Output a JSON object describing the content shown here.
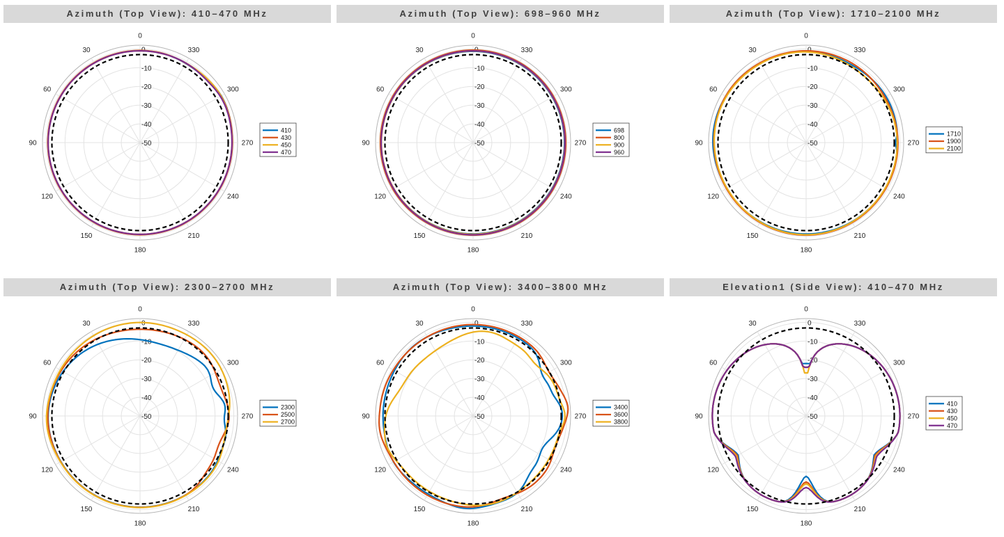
{
  "chart_data": [
    {
      "type": "polar",
      "title": "Azimuth (Top View): 410–470 MHz",
      "angle_ticks": [
        "0",
        "30",
        "60",
        "90",
        "120",
        "150",
        "180",
        "210",
        "240",
        "270",
        "300",
        "330"
      ],
      "r_ticks": [
        "0",
        "-10",
        "-20",
        "-30",
        "-40",
        "-50"
      ],
      "rlim": [
        -50,
        2
      ],
      "angle_direction": "counterclockwise",
      "zero_location": "top",
      "reference": {
        "style": "black dashed circle",
        "value": -3
      },
      "legend_position": "right",
      "series": [
        {
          "name": "410",
          "color": "#0072bd",
          "base": -0.9,
          "features": [
            [
              300,
              1.0,
              12
            ],
            [
              320,
              -0.5,
              12
            ]
          ]
        },
        {
          "name": "430",
          "color": "#d95319",
          "base": -0.8,
          "features": [
            [
              300,
              0.8,
              12
            ],
            [
              320,
              -0.5,
              12
            ]
          ]
        },
        {
          "name": "450",
          "color": "#edb120",
          "base": -1.0,
          "features": [
            [
              300,
              0.8,
              12
            ]
          ]
        },
        {
          "name": "470",
          "color": "#7e2f8e",
          "base": -1.0,
          "features": [
            [
              300,
              0.6,
              12
            ],
            [
              312,
              -0.6,
              8
            ]
          ]
        }
      ]
    },
    {
      "type": "polar",
      "title": "Azimuth (Top View): 698–960 MHz",
      "angle_ticks": [
        "0",
        "30",
        "60",
        "90",
        "120",
        "150",
        "180",
        "210",
        "240",
        "270",
        "300",
        "330"
      ],
      "r_ticks": [
        "0",
        "-10",
        "-20",
        "-30",
        "-40",
        "-50"
      ],
      "rlim": [
        -50,
        2
      ],
      "angle_direction": "counterclockwise",
      "zero_location": "top",
      "reference": {
        "style": "black dashed circle",
        "value": -3
      },
      "legend_position": "right",
      "series": [
        {
          "name": "698",
          "color": "#0072bd",
          "base": -1.3,
          "features": [
            [
              90,
              0.3,
              40
            ]
          ]
        },
        {
          "name": "800",
          "color": "#d95319",
          "base": -0.6,
          "features": []
        },
        {
          "name": "900",
          "color": "#edb120",
          "base": -1.1,
          "features": []
        },
        {
          "name": "960",
          "color": "#7e2f8e",
          "base": -1.0,
          "features": [
            [
              180,
              0.2,
              30
            ]
          ]
        }
      ]
    },
    {
      "type": "polar",
      "title": "Azimuth (Top View): 1710–2100 MHz",
      "angle_ticks": [
        "0",
        "30",
        "60",
        "90",
        "120",
        "150",
        "180",
        "210",
        "240",
        "270",
        "300",
        "330"
      ],
      "r_ticks": [
        "0",
        "-10",
        "-20",
        "-30",
        "-40",
        "-50"
      ],
      "rlim": [
        -50,
        2
      ],
      "angle_direction": "counterclockwise",
      "zero_location": "top",
      "reference": {
        "style": "black dashed circle",
        "value": -3
      },
      "legend_position": "right",
      "series": [
        {
          "name": "1710",
          "color": "#0072bd",
          "base": -1.2,
          "features": [
            [
              80,
              1.0,
              20
            ],
            [
              270,
              -1.2,
              3
            ],
            [
              300,
              0.5,
              15
            ],
            [
              330,
              -0.8,
              15
            ]
          ]
        },
        {
          "name": "1900",
          "color": "#d95319",
          "base": -1.0,
          "features": [
            [
              60,
              0.5,
              20
            ],
            [
              180,
              0.4,
              30
            ],
            [
              300,
              -0.5,
              15
            ]
          ]
        },
        {
          "name": "2100",
          "color": "#edb120",
          "base": -1.4,
          "features": [
            [
              70,
              0.6,
              20
            ],
            [
              180,
              0.6,
              30
            ],
            [
              320,
              -1.5,
              20
            ]
          ]
        }
      ]
    },
    {
      "type": "polar",
      "title": "Azimuth (Top View): 2300–2700 MHz",
      "angle_ticks": [
        "0",
        "30",
        "60",
        "90",
        "120",
        "150",
        "180",
        "210",
        "240",
        "270",
        "300",
        "330"
      ],
      "r_ticks": [
        "0",
        "-10",
        "-20",
        "-30",
        "-40",
        "-50"
      ],
      "rlim": [
        -50,
        2
      ],
      "angle_direction": "counterclockwise",
      "zero_location": "top",
      "reference": {
        "style": "black dashed circle",
        "value": -3
      },
      "legend_position": "right",
      "series": [
        {
          "name": "2300",
          "color": "#0072bd",
          "base": -1.3,
          "features": [
            [
              0,
              -6.0,
              35
            ],
            [
              330,
              -4.0,
              25
            ],
            [
              290,
              -5.0,
              8
            ],
            [
              268,
              -3.0,
              6
            ],
            [
              250,
              -1.5,
              10
            ],
            [
              90,
              0.5,
              15
            ]
          ]
        },
        {
          "name": "2500",
          "color": "#d95319",
          "base": -1.2,
          "features": [
            [
              0,
              -2.5,
              30
            ],
            [
              290,
              -3.0,
              12
            ],
            [
              250,
              -4.0,
              10
            ],
            [
              230,
              -2.0,
              8
            ],
            [
              90,
              0.4,
              15
            ]
          ]
        },
        {
          "name": "2700",
          "color": "#edb120",
          "base": -1.1,
          "features": [
            [
              0,
              1.0,
              30
            ],
            [
              310,
              1.2,
              15
            ],
            [
              260,
              -2.5,
              12
            ],
            [
              95,
              1.0,
              12
            ]
          ]
        }
      ]
    },
    {
      "type": "polar",
      "title": "Azimuth (Top View): 3400–3800 MHz",
      "angle_ticks": [
        "0",
        "30",
        "60",
        "90",
        "120",
        "150",
        "180",
        "210",
        "240",
        "270",
        "300",
        "330"
      ],
      "r_ticks": [
        "0",
        "-10",
        "-20",
        "-30",
        "-40",
        "-50"
      ],
      "rlim": [
        -50,
        2
      ],
      "angle_direction": "counterclockwise",
      "zero_location": "top",
      "reference": {
        "style": "black dashed circle",
        "value": -3
      },
      "legend_position": "right",
      "series": [
        {
          "name": "3400",
          "color": "#0072bd",
          "base": -2.0,
          "features": [
            [
              300,
              -5.0,
              8
            ],
            [
              285,
              -3.0,
              6
            ],
            [
              245,
              -7.0,
              10
            ],
            [
              225,
              -4.0,
              8
            ],
            [
              120,
              1.0,
              10
            ],
            [
              175,
              1.5,
              10
            ],
            [
              40,
              1.0,
              15
            ]
          ]
        },
        {
          "name": "3600",
          "color": "#d95319",
          "base": -1.2,
          "features": [
            [
              300,
              -2.0,
              8
            ],
            [
              275,
              2.0,
              6
            ],
            [
              250,
              -2.0,
              8
            ],
            [
              200,
              -2.0,
              10
            ],
            [
              80,
              0.8,
              15
            ],
            [
              100,
              1.2,
              8
            ]
          ]
        },
        {
          "name": "3800",
          "color": "#edb120",
          "base": -3.5,
          "features": [
            [
              20,
              -4.0,
              15
            ],
            [
              45,
              -5.0,
              15
            ],
            [
              70,
              -4.0,
              12
            ],
            [
              90,
              1.0,
              12
            ],
            [
              330,
              -2.0,
              10
            ],
            [
              310,
              -3.0,
              8
            ],
            [
              270,
              2.5,
              6
            ],
            [
              190,
              1.5,
              15
            ],
            [
              110,
              2.0,
              8
            ]
          ]
        }
      ]
    },
    {
      "type": "polar",
      "title": "Elevation1 (Side View): 410–470 MHz",
      "angle_ticks": [
        "0",
        "30",
        "60",
        "90",
        "120",
        "150",
        "180",
        "210",
        "240",
        "270",
        "300",
        "330"
      ],
      "r_ticks": [
        "0",
        "-10",
        "-20",
        "-30",
        "-40",
        "-50"
      ],
      "rlim": [
        -50,
        2
      ],
      "angle_direction": "counterclockwise",
      "zero_location": "top",
      "reference": {
        "style": "black dashed circle",
        "value": -3
      },
      "legend_position": "right",
      "pattern": "elevation",
      "series": [
        {
          "name": "410",
          "color": "#0072bd",
          "null_floor": -22,
          "bottom_dip": -15,
          "scale": 1.0
        },
        {
          "name": "430",
          "color": "#d95319",
          "null_floor": -24,
          "bottom_dip": -12,
          "scale": 0.9
        },
        {
          "name": "450",
          "color": "#edb120",
          "null_floor": -27,
          "bottom_dip": -11,
          "scale": 0.8
        },
        {
          "name": "470",
          "color": "#7e2f8e",
          "null_floor": -24,
          "bottom_dip": -9,
          "scale": 0.7
        }
      ]
    }
  ]
}
